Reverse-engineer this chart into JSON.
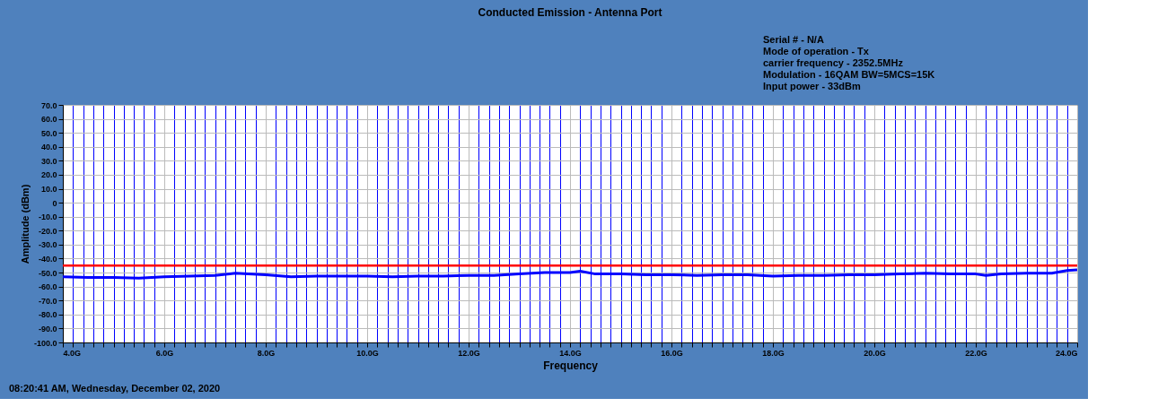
{
  "chart_data": {
    "type": "line",
    "title": "Conducted Emission - Antenna Port",
    "xlabel": "Frequency",
    "ylabel": "Amplitude (dBm)",
    "x": [
      4.0,
      4.5,
      5.0,
      5.5,
      6.0,
      6.5,
      7.0,
      7.4,
      8.0,
      8.5,
      9.0,
      9.5,
      10.0,
      10.5,
      11.0,
      11.5,
      12.0,
      12.5,
      13.0,
      13.5,
      14.0,
      14.2,
      14.5,
      15.0,
      15.5,
      16.0,
      16.5,
      17.0,
      17.5,
      18.0,
      18.5,
      19.0,
      19.5,
      20.0,
      20.5,
      21.0,
      21.5,
      22.0,
      22.2,
      22.5,
      23.0,
      23.5,
      23.8,
      24.0
    ],
    "series": [
      {
        "color": "#0000ff",
        "values": [
          -53,
          -53.5,
          -53.5,
          -54,
          -53,
          -52.5,
          -52,
          -50.5,
          -51.5,
          -53,
          -52.5,
          -52.5,
          -52.5,
          -53,
          -52.5,
          -52.5,
          -52,
          -52,
          -51,
          -50,
          -50,
          -49,
          -51,
          -51,
          -51.5,
          -51.5,
          -52,
          -51.5,
          -51.5,
          -52.5,
          -52,
          -52,
          -51.5,
          -51.5,
          -51,
          -50.5,
          -51,
          -51,
          -52,
          -51,
          -50.5,
          -50.5,
          -48.5,
          -48
        ]
      }
    ],
    "xlim": [
      4,
      24
    ],
    "ylim": [
      -100,
      70
    ],
    "xticks": [
      {
        "value": 4,
        "label": "4.0G"
      },
      {
        "value": 4.2,
        "label": null
      },
      {
        "value": 4.4,
        "label": null
      },
      {
        "value": 4.6,
        "label": null
      },
      {
        "value": 4.8,
        "label": null
      },
      {
        "value": 5.0,
        "label": null
      },
      {
        "value": 5.2,
        "label": null
      },
      {
        "value": 5.4,
        "label": null
      },
      {
        "value": 5.6,
        "label": null
      },
      {
        "value": 5.8,
        "label": null
      },
      {
        "value": 6,
        "label": "6.0G"
      },
      {
        "value": 6.2,
        "label": null
      },
      {
        "value": 6.4,
        "label": null
      },
      {
        "value": 6.6,
        "label": null
      },
      {
        "value": 6.8,
        "label": null
      },
      {
        "value": 7.0,
        "label": null
      },
      {
        "value": 7.2,
        "label": null
      },
      {
        "value": 7.4,
        "label": null
      },
      {
        "value": 7.6,
        "label": null
      },
      {
        "value": 7.8,
        "label": null
      },
      {
        "value": 8,
        "label": "8.0G"
      },
      {
        "value": 8.2,
        "label": null
      },
      {
        "value": 8.4,
        "label": null
      },
      {
        "value": 8.6,
        "label": null
      },
      {
        "value": 8.8,
        "label": null
      },
      {
        "value": 9.0,
        "label": null
      },
      {
        "value": 9.2,
        "label": null
      },
      {
        "value": 9.4,
        "label": null
      },
      {
        "value": 9.6,
        "label": null
      },
      {
        "value": 9.8,
        "label": null
      },
      {
        "value": 10,
        "label": "10.0G"
      },
      {
        "value": 10.2,
        "label": null
      },
      {
        "value": 10.4,
        "label": null
      },
      {
        "value": 10.6,
        "label": null
      },
      {
        "value": 10.8,
        "label": null
      },
      {
        "value": 11.0,
        "label": null
      },
      {
        "value": 11.2,
        "label": null
      },
      {
        "value": 11.4,
        "label": null
      },
      {
        "value": 11.6,
        "label": null
      },
      {
        "value": 11.8,
        "label": null
      },
      {
        "value": 12,
        "label": "12.0G"
      },
      {
        "value": 12.2,
        "label": null
      },
      {
        "value": 12.4,
        "label": null
      },
      {
        "value": 12.6,
        "label": null
      },
      {
        "value": 12.8,
        "label": null
      },
      {
        "value": 13.0,
        "label": null
      },
      {
        "value": 13.2,
        "label": null
      },
      {
        "value": 13.4,
        "label": null
      },
      {
        "value": 13.6,
        "label": null
      },
      {
        "value": 13.8,
        "label": null
      },
      {
        "value": 14,
        "label": "14.0G"
      },
      {
        "value": 14.2,
        "label": null
      },
      {
        "value": 14.4,
        "label": null
      },
      {
        "value": 14.6,
        "label": null
      },
      {
        "value": 14.8,
        "label": null
      },
      {
        "value": 15.0,
        "label": null
      },
      {
        "value": 15.2,
        "label": null
      },
      {
        "value": 15.4,
        "label": null
      },
      {
        "value": 15.6,
        "label": null
      },
      {
        "value": 15.8,
        "label": null
      },
      {
        "value": 16,
        "label": "16.0G"
      },
      {
        "value": 16.2,
        "label": null
      },
      {
        "value": 16.4,
        "label": null
      },
      {
        "value": 16.6,
        "label": null
      },
      {
        "value": 16.8,
        "label": null
      },
      {
        "value": 17.0,
        "label": null
      },
      {
        "value": 17.2,
        "label": null
      },
      {
        "value": 17.4,
        "label": null
      },
      {
        "value": 17.6,
        "label": null
      },
      {
        "value": 17.8,
        "label": null
      },
      {
        "value": 18,
        "label": "18.0G"
      },
      {
        "value": 18.2,
        "label": null
      },
      {
        "value": 18.4,
        "label": null
      },
      {
        "value": 18.6,
        "label": null
      },
      {
        "value": 18.8,
        "label": null
      },
      {
        "value": 19.0,
        "label": null
      },
      {
        "value": 19.2,
        "label": null
      },
      {
        "value": 19.4,
        "label": null
      },
      {
        "value": 19.6,
        "label": null
      },
      {
        "value": 19.8,
        "label": null
      },
      {
        "value": 20,
        "label": "20.0G"
      },
      {
        "value": 20.2,
        "label": null
      },
      {
        "value": 20.4,
        "label": null
      },
      {
        "value": 20.6,
        "label": null
      },
      {
        "value": 20.8,
        "label": null
      },
      {
        "value": 21.0,
        "label": null
      },
      {
        "value": 21.2,
        "label": null
      },
      {
        "value": 21.4,
        "label": null
      },
      {
        "value": 21.6,
        "label": null
      },
      {
        "value": 21.8,
        "label": null
      },
      {
        "value": 22,
        "label": "22.0G"
      },
      {
        "value": 22.2,
        "label": null
      },
      {
        "value": 22.4,
        "label": null
      },
      {
        "value": 22.6,
        "label": null
      },
      {
        "value": 22.8,
        "label": null
      },
      {
        "value": 23.0,
        "label": null
      },
      {
        "value": 23.2,
        "label": null
      },
      {
        "value": 23.4,
        "label": null
      },
      {
        "value": 23.6,
        "label": null
      },
      {
        "value": 23.8,
        "label": null
      },
      {
        "value": 24,
        "label": "24.0G"
      }
    ],
    "yticks": [
      {
        "value": -100,
        "label": "-100.0"
      },
      {
        "value": -90,
        "label": "-90.0"
      },
      {
        "value": -80,
        "label": "-80.0"
      },
      {
        "value": -70,
        "label": "-70.0"
      },
      {
        "value": -60,
        "label": "-60.0"
      },
      {
        "value": -50,
        "label": "-50.0"
      },
      {
        "value": -40,
        "label": "-40.0"
      },
      {
        "value": -30,
        "label": "-30.0"
      },
      {
        "value": -20,
        "label": "-20.0"
      },
      {
        "value": -10,
        "label": "-10.0"
      },
      0,
      {
        "value": 10,
        "label": "10.0"
      },
      {
        "value": 20,
        "label": "20.0"
      },
      {
        "value": 30,
        "label": "30.0"
      },
      {
        "value": 40,
        "label": "40.0"
      },
      {
        "value": 50,
        "label": "50.0"
      },
      {
        "value": 60,
        "label": "60.0"
      },
      {
        "value": 70,
        "label": "70.0"
      }
    ],
    "ref_lines": [
      {
        "axis": "y",
        "value": -45,
        "color": "#ff0000"
      }
    ],
    "grid": true,
    "marker": "none",
    "line_style": "solid",
    "annotations": [
      "Serial # - N/A",
      "Mode of operation - Tx",
      "carrier frequency - 2352.5MHz",
      "Modulation - 16QAM BW=5MCS=15K",
      "Input power - 33dBm",
      "08:20:41 AM, Wednesday, December 02, 2020"
    ]
  }
}
